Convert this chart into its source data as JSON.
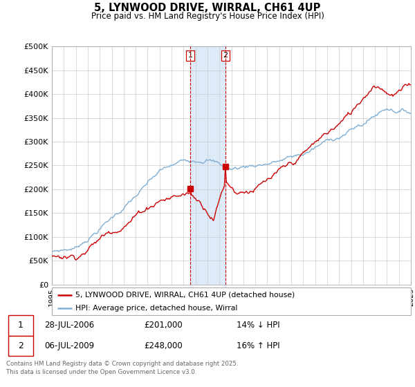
{
  "title": "5, LYNWOOD DRIVE, WIRRAL, CH61 4UP",
  "subtitle": "Price paid vs. HM Land Registry's House Price Index (HPI)",
  "ylim": [
    0,
    500000
  ],
  "yticks": [
    0,
    50000,
    100000,
    150000,
    200000,
    250000,
    300000,
    350000,
    400000,
    450000,
    500000
  ],
  "ytick_labels": [
    "£0",
    "£50K",
    "£100K",
    "£150K",
    "£200K",
    "£250K",
    "£300K",
    "£350K",
    "£400K",
    "£450K",
    "£500K"
  ],
  "hpi_color": "#7eaed4",
  "price_color": "#cc0000",
  "shade_color": "#ddeaf7",
  "vline_color": "#cc0000",
  "transaction1_year": 2006.57,
  "transaction2_year": 2009.51,
  "transaction1_price": 201000,
  "transaction2_price": 248000,
  "transaction1_label": "1",
  "transaction2_label": "2",
  "legend_entries": [
    "5, LYNWOOD DRIVE, WIRRAL, CH61 4UP (detached house)",
    "HPI: Average price, detached house, Wirral"
  ],
  "table_rows": [
    [
      "1",
      "28-JUL-2006",
      "£201,000",
      "14% ↓ HPI"
    ],
    [
      "2",
      "06-JUL-2009",
      "£248,000",
      "16% ↑ HPI"
    ]
  ],
  "footnote": "Contains HM Land Registry data © Crown copyright and database right 2025.\nThis data is licensed under the Open Government Licence v3.0.",
  "background_color": "#ffffff",
  "grid_color": "#cccccc",
  "start_year": 1995,
  "end_year": 2025
}
